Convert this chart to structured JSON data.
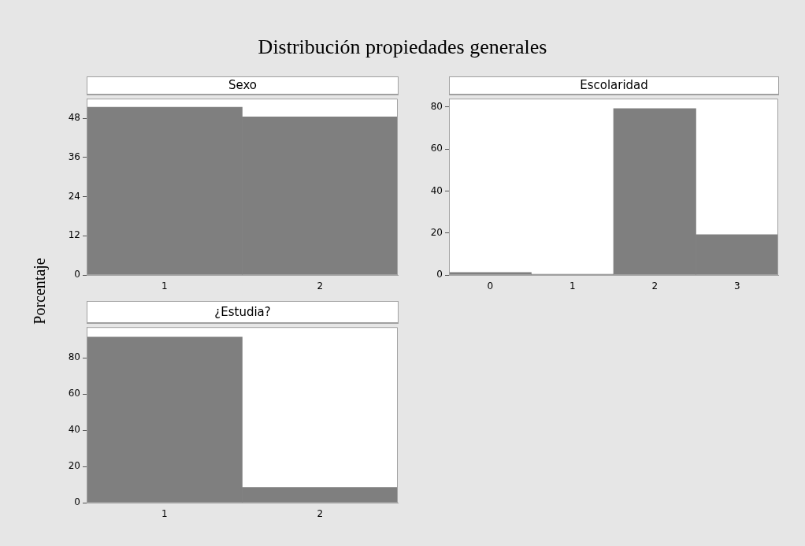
{
  "chart_data": [
    {
      "type": "bar",
      "title": "Distribución propiedades generales",
      "subtitle": "Sexo",
      "ylabel": "Porcentaje",
      "categories": [
        "1",
        "2"
      ],
      "values": [
        51.4,
        48.4
      ],
      "color": "#7f7f7f",
      "ylim": [
        0,
        54
      ],
      "yticks": [
        0,
        12,
        24,
        36,
        48
      ]
    },
    {
      "type": "bar",
      "subtitle": "Escolaridad",
      "categories": [
        "0",
        "1",
        "2",
        "3"
      ],
      "values": [
        1.2,
        0.3,
        79.3,
        19.2
      ],
      "color": "#7f7f7f",
      "ylim": [
        0,
        84
      ],
      "yticks": [
        0,
        20,
        40,
        60,
        80
      ]
    },
    {
      "type": "bar",
      "subtitle": "¿Estudia?",
      "categories": [
        "1",
        "2"
      ],
      "values": [
        91.5,
        8.5
      ],
      "color": "#7f7f7f",
      "ylim": [
        0,
        97
      ],
      "yticks": [
        0,
        20,
        40,
        60,
        80
      ]
    }
  ]
}
